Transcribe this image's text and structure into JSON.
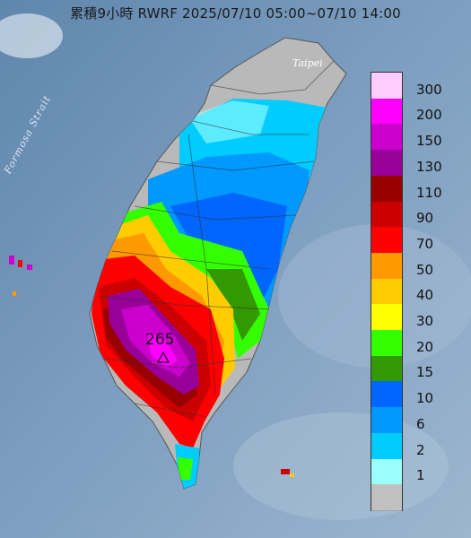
{
  "title": "累積9小時 RWRF 2025/07/10 05:00~07/10 14:00",
  "labels": {
    "strait": "Formosa Strait",
    "city": "Taipei",
    "max_value": "265"
  },
  "legend": {
    "items": [
      {
        "label": "300",
        "color": "#ffccff"
      },
      {
        "label": "200",
        "color": "#ff00ff"
      },
      {
        "label": "150",
        "color": "#cc00cc"
      },
      {
        "label": "130",
        "color": "#990099"
      },
      {
        "label": "110",
        "color": "#990000"
      },
      {
        "label": "90",
        "color": "#cc0000"
      },
      {
        "label": "70",
        "color": "#ff0000"
      },
      {
        "label": "50",
        "color": "#ff9900"
      },
      {
        "label": "40",
        "color": "#ffcc00"
      },
      {
        "label": "30",
        "color": "#ffff00"
      },
      {
        "label": "20",
        "color": "#33ff00"
      },
      {
        "label": "15",
        "color": "#339900"
      },
      {
        "label": "10",
        "color": "#0066ff"
      },
      {
        "label": "6",
        "color": "#0099ff"
      },
      {
        "label": "2",
        "color": "#00ccff"
      },
      {
        "label": "1",
        "color": "#99ffff"
      },
      {
        "label": "",
        "color": "#c0c0c0"
      }
    ]
  }
}
